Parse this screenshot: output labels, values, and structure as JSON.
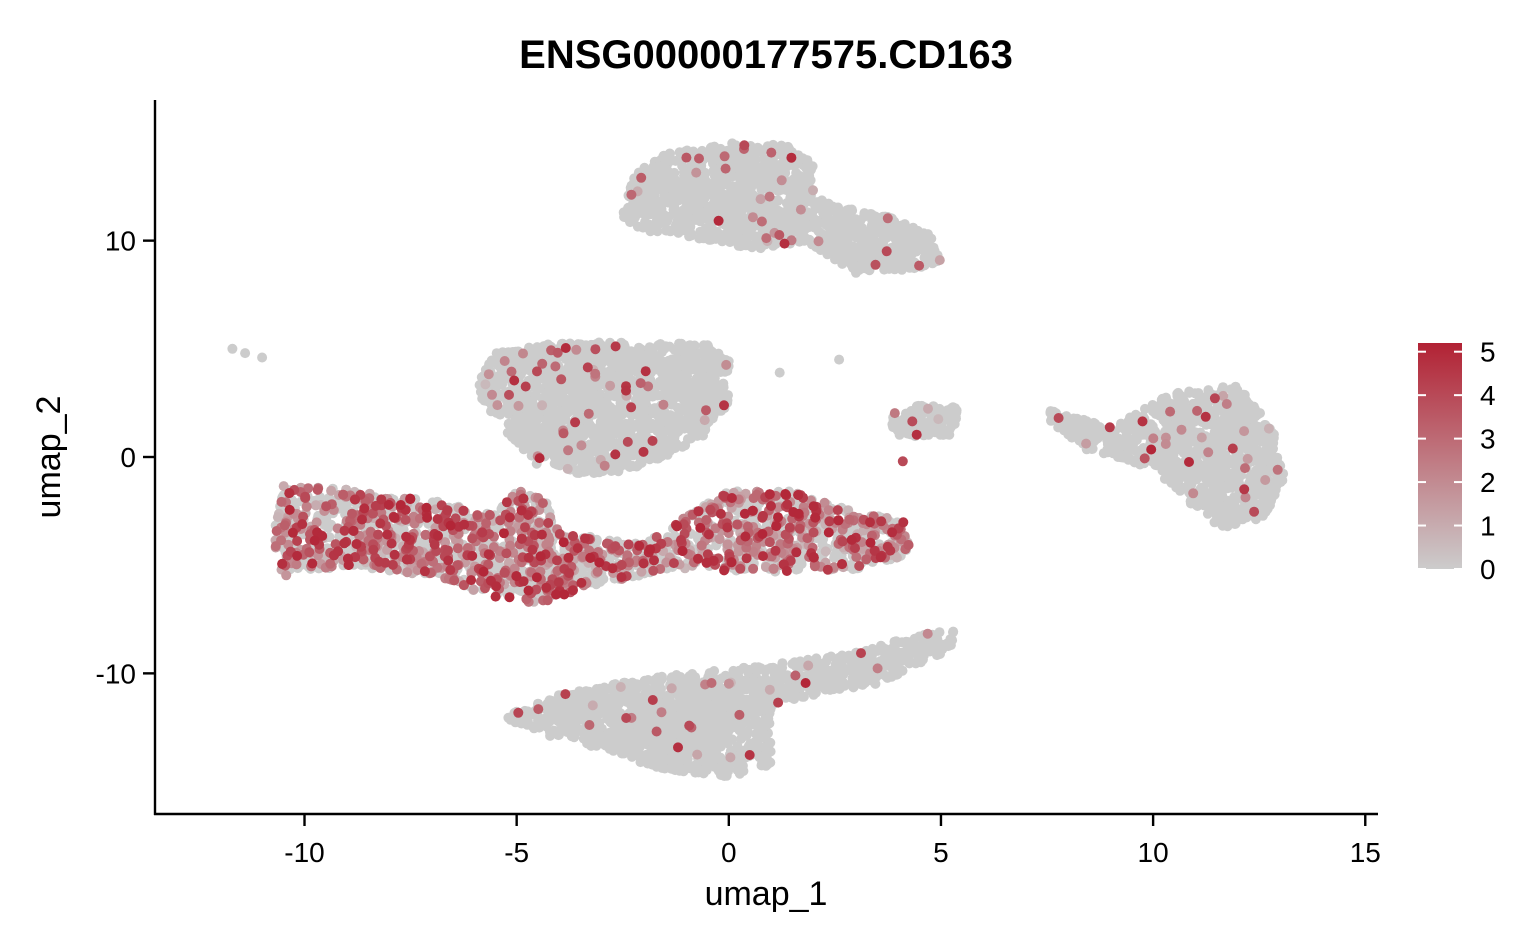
{
  "chart_data": {
    "type": "scatter",
    "title": "ENSG00000177575.CD163",
    "xlabel": "umap_1",
    "ylabel": "umap_2",
    "xlim": [
      -13.5,
      15.3
    ],
    "ylim": [
      -16.5,
      16.5
    ],
    "x_ticks": [
      -10,
      -5,
      0,
      5,
      10,
      15
    ],
    "x_tick_labels": [
      "-10",
      "-5",
      "0",
      "5",
      "10",
      "15"
    ],
    "y_ticks": [
      -10,
      0,
      10
    ],
    "y_tick_labels": [
      "-10",
      "0",
      "10"
    ],
    "grid": false,
    "legend": {
      "placement": "right",
      "type": "colorbar",
      "min": 0,
      "max": 5.2,
      "ticks": [
        0,
        1,
        2,
        3,
        4,
        5
      ],
      "tick_labels": [
        "0",
        "1",
        "2",
        "3",
        "4",
        "5"
      ]
    },
    "colors": {
      "low": "#cccccc",
      "high": "#b22234"
    },
    "clusters": [
      {
        "id": "top-cluster",
        "shape": [
          [
            -2.5,
            11.2
          ],
          [
            -2.3,
            13.0
          ],
          [
            -1.5,
            14.0
          ],
          [
            0.0,
            14.5
          ],
          [
            1.5,
            14.4
          ],
          [
            2.0,
            13.5
          ],
          [
            2.0,
            12.0
          ],
          [
            2.8,
            11.5
          ],
          [
            4.0,
            11.0
          ],
          [
            4.8,
            10.2
          ],
          [
            5.0,
            9.0
          ],
          [
            4.2,
            8.6
          ],
          [
            3.0,
            8.5
          ],
          [
            2.4,
            9.2
          ],
          [
            1.8,
            10.0
          ],
          [
            0.8,
            9.6
          ],
          [
            0.0,
            9.8
          ],
          [
            -1.0,
            10.2
          ],
          [
            -1.8,
            10.4
          ],
          [
            -2.4,
            10.8
          ]
        ],
        "expression": 0.02
      },
      {
        "id": "mid-left-cluster",
        "shape": [
          [
            -5.9,
            3.5
          ],
          [
            -5.5,
            4.8
          ],
          [
            -4.0,
            5.3
          ],
          [
            -2.0,
            5.3
          ],
          [
            -0.5,
            5.2
          ],
          [
            0.0,
            4.5
          ],
          [
            0.0,
            2.5
          ],
          [
            -0.6,
            1.0
          ],
          [
            -1.5,
            0.0
          ],
          [
            -2.5,
            -0.7
          ],
          [
            -3.5,
            -0.8
          ],
          [
            -4.5,
            -0.4
          ],
          [
            -5.2,
            1.0
          ],
          [
            -5.8,
            2.5
          ]
        ],
        "expression": 0.03
      },
      {
        "id": "right-cluster",
        "shape": [
          [
            7.5,
            2.2
          ],
          [
            9.0,
            1.4
          ],
          [
            10.5,
            3.0
          ],
          [
            12.0,
            3.3
          ],
          [
            12.8,
            1.5
          ],
          [
            13.1,
            -1.0
          ],
          [
            12.6,
            -2.8
          ],
          [
            11.6,
            -3.3
          ],
          [
            10.8,
            -2.0
          ],
          [
            10.0,
            -0.5
          ],
          [
            8.5,
            0.2
          ],
          [
            7.6,
            1.6
          ]
        ],
        "expression": 0.03
      },
      {
        "id": "bottom-cluster",
        "shape": [
          [
            -5.3,
            -12.0
          ],
          [
            -4.0,
            -11.0
          ],
          [
            -2.5,
            -10.4
          ],
          [
            -1.0,
            -10.0
          ],
          [
            1.0,
            -9.6
          ],
          [
            3.0,
            -9.0
          ],
          [
            4.5,
            -8.2
          ],
          [
            5.3,
            -8.0
          ],
          [
            5.3,
            -8.8
          ],
          [
            3.5,
            -10.5
          ],
          [
            2.0,
            -11.0
          ],
          [
            1.0,
            -11.5
          ],
          [
            1.0,
            -14.2
          ],
          [
            0.0,
            -14.8
          ],
          [
            -1.5,
            -14.5
          ],
          [
            -3.0,
            -13.5
          ],
          [
            -4.5,
            -12.8
          ]
        ],
        "expression": 0.02
      },
      {
        "id": "small-island",
        "shape": [
          [
            3.6,
            2.0
          ],
          [
            4.5,
            2.4
          ],
          [
            5.4,
            2.3
          ],
          [
            5.3,
            1.0
          ],
          [
            4.5,
            0.8
          ],
          [
            4.0,
            1.0
          ],
          [
            3.7,
            1.6
          ]
        ],
        "expression": 0.05
      },
      {
        "id": "myeloid-band",
        "shape": [
          [
            -10.5,
            -1.3
          ],
          [
            -9.0,
            -1.5
          ],
          [
            -7.0,
            -2.0
          ],
          [
            -5.5,
            -2.6
          ],
          [
            -5.0,
            -1.5
          ],
          [
            -4.3,
            -2.0
          ],
          [
            -4.0,
            -3.5
          ],
          [
            -2.0,
            -4.0
          ],
          [
            0.0,
            -1.5
          ],
          [
            1.5,
            -1.6
          ],
          [
            3.0,
            -2.5
          ],
          [
            4.2,
            -3.0
          ],
          [
            4.3,
            -4.5
          ],
          [
            3.0,
            -5.2
          ],
          [
            1.0,
            -5.3
          ],
          [
            -1.0,
            -5.2
          ],
          [
            -3.0,
            -5.8
          ],
          [
            -4.5,
            -6.8
          ],
          [
            -5.5,
            -6.5
          ],
          [
            -7.0,
            -5.5
          ],
          [
            -9.0,
            -5.0
          ],
          [
            -10.5,
            -5.5
          ],
          [
            -10.8,
            -4.0
          ],
          [
            -10.6,
            -2.5
          ]
        ],
        "expression": 0.45
      }
    ],
    "seed_points": [
      {
        "x": -11.7,
        "y": 5.0,
        "v": 0
      },
      {
        "x": -11.4,
        "y": 4.8,
        "v": 0
      },
      {
        "x": -11.0,
        "y": 4.6,
        "v": 0
      },
      {
        "x": -0.1,
        "y": 13.9,
        "v": 3
      },
      {
        "x": 10.4,
        "y": 2.1,
        "v": 3
      },
      {
        "x": 10.3,
        "y": 0.6,
        "v": 2
      },
      {
        "x": -3.3,
        "y": 2.0,
        "v": 3
      },
      {
        "x": 1.2,
        "y": 3.9,
        "v": 0
      },
      {
        "x": 2.6,
        "y": 4.5,
        "v": 0
      },
      {
        "x": 4.1,
        "y": -0.2,
        "v": 4
      }
    ],
    "n_points": 8000
  }
}
